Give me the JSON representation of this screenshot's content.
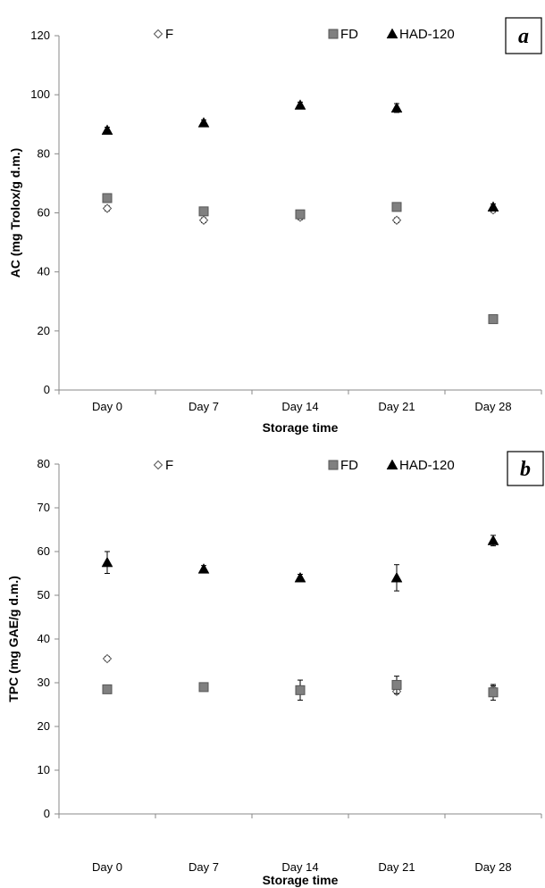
{
  "chart_data": [
    {
      "type": "scatter",
      "panel_label": "a",
      "ylabel": "AC (mg Trolox/g d.m.)",
      "xlabel": "Storage time",
      "categories": [
        "Day 0",
        "Day 7",
        "Day 14",
        "Day 21",
        "Day 28"
      ],
      "ylim": [
        0,
        120
      ],
      "yticks": [
        "0",
        "20",
        "40",
        "60",
        "80",
        "100",
        "120"
      ],
      "grid": false,
      "legend_position": "top",
      "series": [
        {
          "name": "F",
          "marker": "diamond",
          "color": "#ffffff",
          "values": [
            61.5,
            57.5,
            58.5,
            57.5,
            61
          ]
        },
        {
          "name": "FD",
          "marker": "square",
          "color": "#808080",
          "values": [
            65,
            60.5,
            59.5,
            62,
            24
          ]
        },
        {
          "name": "HAD-120",
          "marker": "triangle",
          "color": "#000000",
          "values": [
            88,
            90.5,
            96.5,
            95.5,
            62
          ]
        }
      ],
      "error_bars": {
        "F": [
          0.8,
          0.8,
          0.8,
          0.8,
          0.8
        ],
        "FD": [
          1,
          1,
          1,
          1,
          1
        ],
        "HAD-120": [
          1,
          1,
          1,
          1.5,
          1
        ]
      }
    },
    {
      "type": "scatter",
      "panel_label": "b",
      "ylabel": "TPC (mg GAE/g d.m.)",
      "xlabel": "Storage time",
      "categories": [
        "Day 0",
        "Day 7",
        "Day 14",
        "Day 21",
        "Day 28"
      ],
      "ylim": [
        0,
        80
      ],
      "yticks": [
        "0",
        "10",
        "20",
        "30",
        "40",
        "50",
        "60",
        "70",
        "80"
      ],
      "grid": false,
      "legend_position": "top",
      "series": [
        {
          "name": "F",
          "marker": "diamond",
          "color": "#ffffff",
          "values": [
            35.5,
            29,
            28.5,
            28,
            28.5
          ]
        },
        {
          "name": "FD",
          "marker": "square",
          "color": "#808080",
          "values": [
            28.5,
            29,
            28.3,
            29.5,
            27.8
          ]
        },
        {
          "name": "HAD-120",
          "marker": "triangle",
          "color": "#000000",
          "values": [
            57.5,
            56,
            54,
            54,
            62.5
          ]
        }
      ],
      "error_bars": {
        "F": [
          0.5,
          0.5,
          0.5,
          0.5,
          0.8
        ],
        "FD": [
          0.5,
          0.5,
          2.3,
          2,
          1.8
        ],
        "HAD-120": [
          2.5,
          0.8,
          0.8,
          3,
          1.2
        ]
      }
    }
  ]
}
